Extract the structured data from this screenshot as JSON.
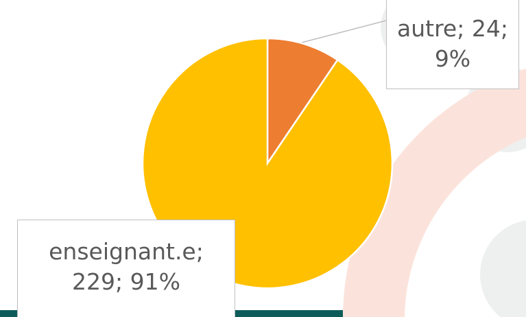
{
  "chart_data": {
    "type": "pie",
    "categories": [
      "autre",
      "enseignant.e"
    ],
    "values": [
      24,
      229
    ],
    "value_labels": [
      "autre; 24; 9%",
      "enseignant.e; 229; 91%"
    ],
    "colors": [
      "#ED7D31",
      "#FFC000"
    ]
  }
}
